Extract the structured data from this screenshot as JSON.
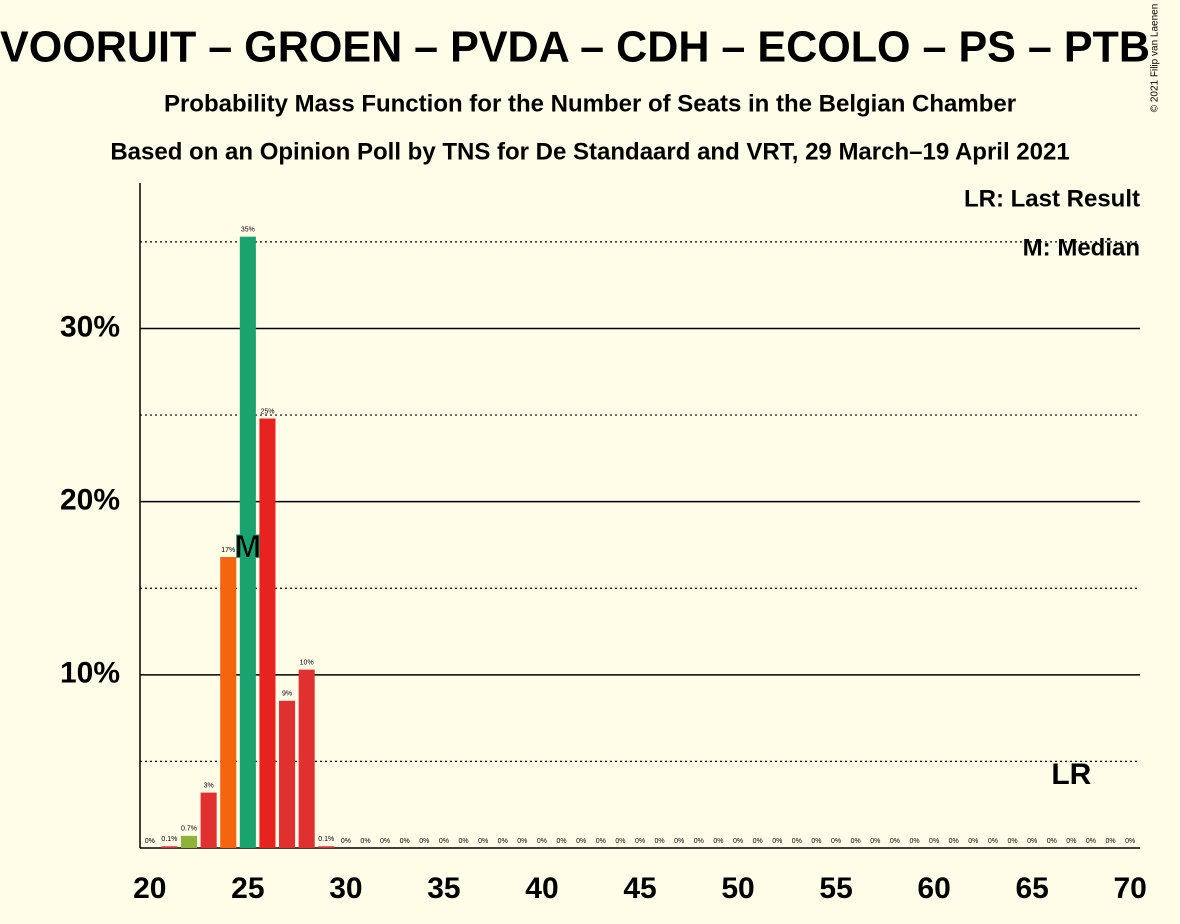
{
  "chart_data": {
    "type": "bar",
    "title": "VOORUIT – GROEN – PVDA – CDH – ECOLO – PS – PTB",
    "subtitle": "Probability Mass Function for the Number of Seats in the Belgian Chamber",
    "subtitle2": "Based on an Opinion Poll by TNS for De Standaard and VRT, 29 March–19 April 2021",
    "credit": "© 2021 Filip van Laenen",
    "legend": [
      "LR: Last Result",
      "M: Median"
    ],
    "x": [
      20,
      21,
      22,
      23,
      24,
      25,
      26,
      27,
      28,
      29,
      30,
      31,
      32,
      33,
      34,
      35,
      36,
      37,
      38,
      39,
      40,
      41,
      42,
      43,
      44,
      45,
      46,
      47,
      48,
      49,
      50,
      51,
      52,
      53,
      54,
      55,
      56,
      57,
      58,
      59,
      60,
      61,
      62,
      63,
      64,
      65,
      66,
      67,
      68,
      69,
      70
    ],
    "values": [
      0,
      0.1,
      0.7,
      3.2,
      16.8,
      35.3,
      24.8,
      8.5,
      10.3,
      0.1,
      0,
      0,
      0,
      0,
      0,
      0,
      0,
      0,
      0,
      0,
      0,
      0,
      0,
      0,
      0,
      0,
      0,
      0,
      0,
      0,
      0,
      0,
      0,
      0,
      0,
      0,
      0,
      0,
      0,
      0,
      0,
      0,
      0,
      0,
      0,
      0,
      0,
      0,
      0,
      0,
      0
    ],
    "value_labels": [
      "0%",
      "0.1%",
      "0.7%",
      "3%",
      "17%",
      "35%",
      "25%",
      "9%",
      "10%",
      "0.1%",
      "0%",
      "0%",
      "0%",
      "0%",
      "0%",
      "0%",
      "0%",
      "0%",
      "0%",
      "0%",
      "0%",
      "0%",
      "0%",
      "0%",
      "0%",
      "0%",
      "0%",
      "0%",
      "0%",
      "0%",
      "0%",
      "0%",
      "0%",
      "0%",
      "0%",
      "0%",
      "0%",
      "0%",
      "0%",
      "0%",
      "0%",
      "0%",
      "0%",
      "0%",
      "0%",
      "0%",
      "0%",
      "0%",
      "0%",
      "0%",
      "0%"
    ],
    "colors": [
      "#e03030",
      "#e03030",
      "#8db33a",
      "#e03030",
      "#f5640f",
      "#1aa36f",
      "#e8221f",
      "#e03030",
      "#e03030",
      "#e03030",
      "#e03030",
      "#e03030",
      "#e03030",
      "#e03030",
      "#e03030",
      "#e03030",
      "#e03030",
      "#e03030",
      "#e03030",
      "#e03030",
      "#e03030",
      "#e03030",
      "#e03030",
      "#e03030",
      "#e03030",
      "#e03030",
      "#e03030",
      "#e03030",
      "#e03030",
      "#e03030",
      "#e03030",
      "#e03030",
      "#e03030",
      "#e03030",
      "#e03030",
      "#e03030",
      "#e03030",
      "#e03030",
      "#e03030",
      "#e03030",
      "#e03030",
      "#e03030",
      "#e03030",
      "#e03030",
      "#e03030",
      "#e03030",
      "#e03030",
      "#e03030",
      "#e03030",
      "#e03030",
      "#e03030"
    ],
    "xlim": [
      19.5,
      70.5
    ],
    "xticks": [
      20,
      25,
      30,
      35,
      40,
      45,
      50,
      55,
      60,
      65,
      70
    ],
    "ylim": [
      0,
      38.4
    ],
    "yticks": [
      {
        "value": 10,
        "label": "10%"
      },
      {
        "value": 20,
        "label": "20%"
      },
      {
        "value": 30,
        "label": "30%"
      }
    ],
    "minor_yticks": [
      5,
      15,
      25,
      35
    ],
    "median": {
      "x": 25,
      "label": "M"
    },
    "last_result": {
      "x": 67,
      "label": "LR"
    }
  }
}
